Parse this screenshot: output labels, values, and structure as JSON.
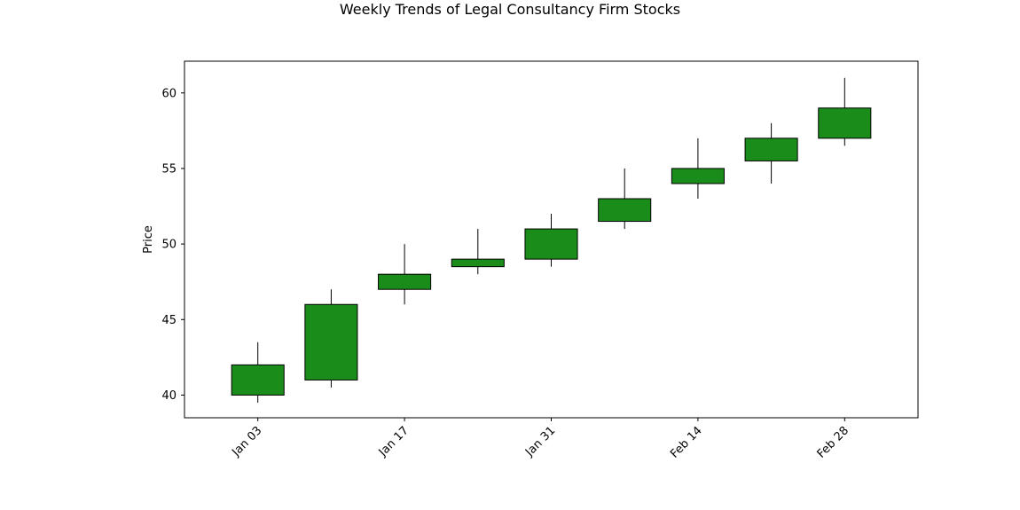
{
  "chart_data": {
    "type": "candlestick",
    "title": "Weekly Trends of Legal Consultancy Firm Stocks",
    "xlabel": "",
    "ylabel": "Price",
    "ylim": [
      38.5,
      62.1
    ],
    "xlim": [
      "2022-12-27",
      "2023-03-07"
    ],
    "x_ticks": [
      "2023-01-03",
      "2023-01-17",
      "2023-01-31",
      "2023-02-14",
      "2023-02-28"
    ],
    "x_tick_labels": [
      "Jan 03",
      "Jan 17",
      "Jan 31",
      "Feb 14",
      "Feb 28"
    ],
    "y_ticks": [
      40,
      45,
      50,
      55,
      60
    ],
    "grid": false,
    "candle_color": "#1a8c1a",
    "edge_color": "#000000",
    "data": [
      {
        "date": "2023-01-03",
        "open": 40.0,
        "high": 43.5,
        "low": 39.5,
        "close": 42.0
      },
      {
        "date": "2023-01-10",
        "open": 41.0,
        "high": 47.0,
        "low": 40.5,
        "close": 46.0
      },
      {
        "date": "2023-01-17",
        "open": 47.0,
        "high": 50.0,
        "low": 46.0,
        "close": 48.0
      },
      {
        "date": "2023-01-24",
        "open": 48.5,
        "high": 51.0,
        "low": 48.0,
        "close": 49.0
      },
      {
        "date": "2023-01-31",
        "open": 49.0,
        "high": 52.0,
        "low": 48.5,
        "close": 51.0
      },
      {
        "date": "2023-02-07",
        "open": 51.5,
        "high": 55.0,
        "low": 51.0,
        "close": 53.0
      },
      {
        "date": "2023-02-14",
        "open": 54.0,
        "high": 57.0,
        "low": 53.0,
        "close": 55.0
      },
      {
        "date": "2023-02-21",
        "open": 55.5,
        "high": 58.0,
        "low": 54.0,
        "close": 57.0
      },
      {
        "date": "2023-02-28",
        "open": 57.0,
        "high": 61.0,
        "low": 56.5,
        "close": 59.0
      }
    ]
  }
}
